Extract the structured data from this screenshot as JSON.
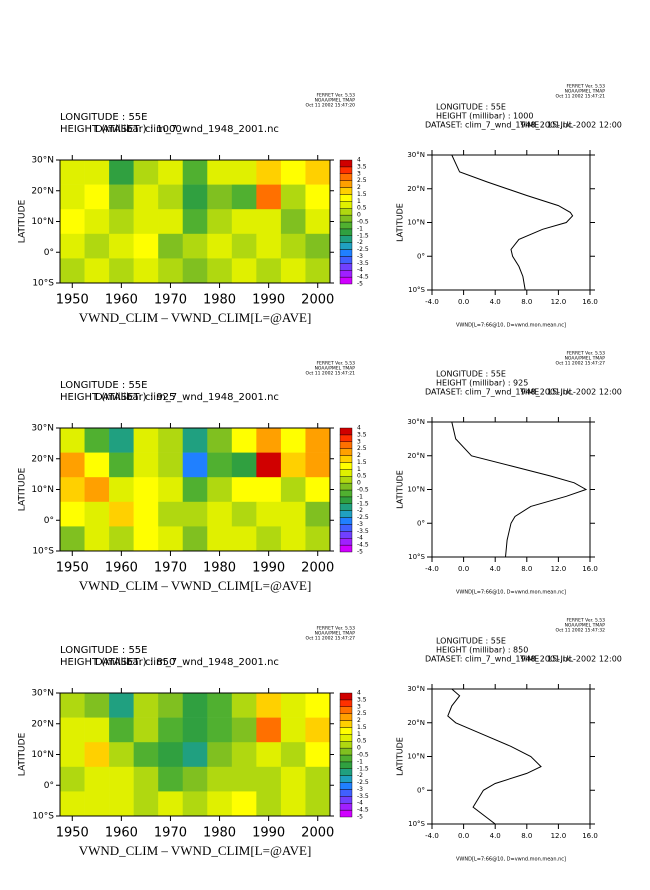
{
  "chart_data": [
    {
      "type": "heatmap",
      "stamp": [
        "FERRET Ver. 5.53",
        "NOAA/PMEL TMAP",
        "Oct 11 2002 15:47:20"
      ],
      "header": [
        "LONGITUDE : 55E",
        "HEIGHT (millibar) : 1000"
      ],
      "dataset": "DATASET: clim_7_wnd_1948_2001.nc",
      "ylabel": "LATITUDE",
      "xlabel": "VWND_CLIM – VWND_CLIM[L=@AVE]",
      "x": [
        1950,
        1955,
        1960,
        1965,
        1970,
        1975,
        1980,
        1985,
        1990,
        1995,
        2000
      ],
      "y": [
        26,
        18,
        10,
        2,
        -6
      ],
      "z": [
        [
          0.5,
          0.5,
          -1.5,
          0,
          0.5,
          -1,
          0.5,
          0.5,
          1.5,
          1,
          1.5
        ],
        [
          0.5,
          1,
          -0.5,
          0.5,
          0,
          -1.5,
          -0.5,
          -1,
          2.5,
          0,
          1
        ],
        [
          1,
          0.5,
          0,
          0.5,
          0.5,
          -1,
          0,
          0.5,
          0.5,
          -0.5,
          0.5
        ],
        [
          0.5,
          0,
          0.5,
          1,
          -0.5,
          0,
          0.5,
          0,
          0.5,
          0,
          -0.5
        ],
        [
          0,
          0.5,
          0,
          0.5,
          0,
          -0.5,
          0,
          0.5,
          0,
          0.5,
          0
        ]
      ],
      "xlim": [
        1947.5,
        2002.5
      ],
      "ylim": [
        -10,
        30
      ],
      "xticks": [
        1950,
        1960,
        1970,
        1980,
        1990,
        2000
      ],
      "yticks": [
        {
          "value": -10,
          "label": "10°S"
        },
        {
          "value": 0,
          "label": "0°"
        },
        {
          "value": 10,
          "label": "10°N"
        },
        {
          "value": 20,
          "label": "20°N"
        },
        {
          "value": 30,
          "label": "30°N"
        }
      ],
      "levels": [
        -5,
        -4.5,
        -4,
        -3.5,
        -3,
        -2.5,
        -2,
        -1.5,
        -1,
        -0.5,
        0,
        0.5,
        1,
        1.5,
        2,
        2.5,
        3,
        3.5,
        4
      ],
      "colors": [
        "#d000ff",
        "#a020ff",
        "#7040ff",
        "#4060ff",
        "#2080ff",
        "#20a0c0",
        "#20a080",
        "#30a040",
        "#50b030",
        "#80c020",
        "#b0d810",
        "#e0f000",
        "#ffff00",
        "#ffd000",
        "#ffa000",
        "#ff7000",
        "#ff3000",
        "#d00000"
      ]
    },
    {
      "type": "line",
      "stamp": [
        "FERRET Ver. 5.53",
        "NOAA/PMEL TMAP",
        "Oct 11 2002 15:47:21"
      ],
      "header": [
        "LONGITUDE : 55E",
        "HEIGHT (millibar) : 1000"
      ],
      "dataset": "DATASET: clim_7_wnd_1948_2001.nc",
      "time": "TIME : 15-JUL-2002 12:00",
      "ylabel": "LATITUDE",
      "xlabel": "VWND[L=7:66@10, D=vwnd.mon.mean.nc]",
      "lat": [
        30,
        25,
        22,
        18,
        15,
        13,
        12,
        10,
        8,
        5,
        2,
        0,
        -3,
        -6,
        -10
      ],
      "values": [
        -1.5,
        -0.5,
        3,
        8,
        12,
        13.5,
        13.8,
        13,
        10,
        7,
        6,
        6.2,
        7,
        7.5,
        7.8
      ],
      "xlim": [
        -4,
        16
      ],
      "ylim": [
        -10,
        30
      ],
      "xticks": [
        {
          "value": -4,
          "label": "-4.0"
        },
        {
          "value": 0,
          "label": "0.0"
        },
        {
          "value": 4,
          "label": "4.0"
        },
        {
          "value": 8,
          "label": "8.0"
        },
        {
          "value": 12,
          "label": "12.0"
        },
        {
          "value": 16,
          "label": "16.0"
        }
      ],
      "yticks": [
        {
          "value": -10,
          "label": "10°S"
        },
        {
          "value": 0,
          "label": "0°"
        },
        {
          "value": 10,
          "label": "10°N"
        },
        {
          "value": 20,
          "label": "20°N"
        },
        {
          "value": 30,
          "label": "30°N"
        }
      ]
    },
    {
      "type": "heatmap",
      "stamp": [
        "FERRET Ver. 5.53",
        "NOAA/PMEL TMAP",
        "Oct 11 2002 15:47:21"
      ],
      "header": [
        "LONGITUDE : 55E",
        "HEIGHT (millibar) : 925"
      ],
      "dataset": "DATASET: clim_7_wnd_1948_2001.nc",
      "ylabel": "LATITUDE",
      "xlabel": "VWND_CLIM – VWND_CLIM[L=@AVE]",
      "x": [
        1950,
        1955,
        1960,
        1965,
        1970,
        1975,
        1980,
        1985,
        1990,
        1995,
        2000
      ],
      "y": [
        26,
        18,
        10,
        2,
        -6
      ],
      "z": [
        [
          0.5,
          -1,
          -2,
          0.5,
          0,
          -2,
          -0.5,
          1,
          2,
          1,
          2
        ],
        [
          2,
          1,
          -1,
          0.5,
          0,
          -3,
          -1,
          -1.5,
          3.5,
          1.5,
          2
        ],
        [
          1.5,
          2,
          0.5,
          1,
          0.5,
          -1,
          0,
          1,
          1,
          0,
          1
        ],
        [
          1,
          0.5,
          1.5,
          1,
          0,
          0,
          0.5,
          0,
          0.5,
          0.5,
          -0.5
        ],
        [
          -0.5,
          0.5,
          0,
          1,
          0.5,
          -0.5,
          0.5,
          0.5,
          0,
          0.5,
          0
        ]
      ],
      "xlim": [
        1947.5,
        2002.5
      ],
      "ylim": [
        -10,
        30
      ],
      "xticks": [
        1950,
        1960,
        1970,
        1980,
        1990,
        2000
      ],
      "yticks": [
        {
          "value": -10,
          "label": "10°S"
        },
        {
          "value": 0,
          "label": "0°"
        },
        {
          "value": 10,
          "label": "10°N"
        },
        {
          "value": 20,
          "label": "20°N"
        },
        {
          "value": 30,
          "label": "30°N"
        }
      ],
      "levels": [
        -5,
        -4.5,
        -4,
        -3.5,
        -3,
        -2.5,
        -2,
        -1.5,
        -1,
        -0.5,
        0,
        0.5,
        1,
        1.5,
        2,
        2.5,
        3,
        3.5,
        4
      ],
      "colors": [
        "#d000ff",
        "#a020ff",
        "#7040ff",
        "#4060ff",
        "#2080ff",
        "#20a0c0",
        "#20a080",
        "#30a040",
        "#50b030",
        "#80c020",
        "#b0d810",
        "#e0f000",
        "#ffff00",
        "#ffd000",
        "#ffa000",
        "#ff7000",
        "#ff3000",
        "#d00000"
      ]
    },
    {
      "type": "line",
      "stamp": [
        "FERRET Ver. 5.53",
        "NOAA/PMEL TMAP",
        "Oct 11 2002 15:47:27"
      ],
      "header": [
        "LONGITUDE : 55E",
        "HEIGHT (millibar) : 925"
      ],
      "dataset": "DATASET: clim_7_wnd_1948_2001.nc",
      "time": "TIME : 15-JUL-2002 12:00",
      "ylabel": "LATITUDE",
      "xlabel": "VWND[L=7:66@10, D=vwnd.mon.mean.nc]",
      "lat": [
        30,
        25,
        20,
        17,
        14,
        12,
        10,
        8,
        5,
        2,
        0,
        -5,
        -10
      ],
      "values": [
        -1.5,
        -1,
        1,
        6,
        11,
        14,
        15.5,
        13,
        8.5,
        6.5,
        6,
        5.5,
        5.3
      ],
      "xlim": [
        -4,
        16
      ],
      "ylim": [
        -10,
        30
      ],
      "xticks": [
        {
          "value": -4,
          "label": "-4.0"
        },
        {
          "value": 0,
          "label": "0.0"
        },
        {
          "value": 4,
          "label": "4.0"
        },
        {
          "value": 8,
          "label": "8.0"
        },
        {
          "value": 12,
          "label": "12.0"
        },
        {
          "value": 16,
          "label": "16.0"
        }
      ],
      "yticks": [
        {
          "value": -10,
          "label": "10°S"
        },
        {
          "value": 0,
          "label": "0°"
        },
        {
          "value": 10,
          "label": "10°N"
        },
        {
          "value": 20,
          "label": "20°N"
        },
        {
          "value": 30,
          "label": "30°N"
        }
      ]
    },
    {
      "type": "heatmap",
      "stamp": [
        "FERRET Ver. 5.53",
        "NOAA/PMEL TMAP",
        "Oct 11 2002 15:47:27"
      ],
      "header": [
        "LONGITUDE : 55E",
        "HEIGHT (millibar) : 850"
      ],
      "dataset": "DATASET: clim_7_wnd_1948_2001.nc",
      "ylabel": "LATITUDE",
      "xlabel": "VWND_CLIM – VWND_CLIM[L=@AVE]",
      "x": [
        1950,
        1955,
        1960,
        1965,
        1970,
        1975,
        1980,
        1985,
        1990,
        1995,
        2000
      ],
      "y": [
        26,
        18,
        10,
        2,
        -6
      ],
      "z": [
        [
          0,
          -0.5,
          -2,
          0,
          -0.5,
          -1.5,
          -1,
          0,
          1.5,
          0.5,
          1
        ],
        [
          0.5,
          0.5,
          -1,
          0,
          -1,
          -1.5,
          -1,
          -0.5,
          2.5,
          0.5,
          1.5
        ],
        [
          0.5,
          1.5,
          0,
          -1,
          -1.5,
          -2,
          -0.5,
          0,
          0.5,
          0,
          1
        ],
        [
          0,
          0.5,
          0.5,
          0,
          -1,
          -0.5,
          0,
          0,
          0,
          0.5,
          0
        ],
        [
          0.5,
          0.5,
          0.5,
          0,
          0.5,
          0,
          0.5,
          1,
          0,
          0.5,
          0
        ]
      ],
      "xlim": [
        1947.5,
        2002.5
      ],
      "ylim": [
        -10,
        30
      ],
      "xticks": [
        1950,
        1960,
        1970,
        1980,
        1990,
        2000
      ],
      "yticks": [
        {
          "value": -10,
          "label": "10°S"
        },
        {
          "value": 0,
          "label": "0°"
        },
        {
          "value": 10,
          "label": "10°N"
        },
        {
          "value": 20,
          "label": "20°N"
        },
        {
          "value": 30,
          "label": "30°N"
        }
      ],
      "levels": [
        -5,
        -4.5,
        -4,
        -3.5,
        -3,
        -2.5,
        -2,
        -1.5,
        -1,
        -0.5,
        0,
        0.5,
        1,
        1.5,
        2,
        2.5,
        3,
        3.5,
        4
      ],
      "colors": [
        "#d000ff",
        "#a020ff",
        "#7040ff",
        "#4060ff",
        "#2080ff",
        "#20a0c0",
        "#20a080",
        "#30a040",
        "#50b030",
        "#80c020",
        "#b0d810",
        "#e0f000",
        "#ffff00",
        "#ffd000",
        "#ffa000",
        "#ff7000",
        "#ff3000",
        "#d00000"
      ]
    },
    {
      "type": "line",
      "stamp": [
        "FERRET Ver. 5.53",
        "NOAA/PMEL TMAP",
        "Oct 11 2002 15:47:32"
      ],
      "header": [
        "LONGITUDE : 55E",
        "HEIGHT (millibar) : 850"
      ],
      "dataset": "DATASET: clim_7_wnd_1948_2001.nc",
      "time": "TIME : 15-JUL-2002 12:00",
      "ylabel": "LATITUDE",
      "xlabel": "VWND[L=7:66@10, D=vwnd.mon.mean.nc]",
      "lat": [
        30,
        28,
        25,
        22,
        20,
        17,
        13,
        10,
        7,
        5,
        2,
        0,
        -5,
        -10
      ],
      "values": [
        -1.5,
        -0.5,
        -1.5,
        -2,
        -1,
        2,
        6,
        8.5,
        9.8,
        8,
        4,
        2.5,
        1.2,
        4
      ],
      "xlim": [
        -4,
        16
      ],
      "ylim": [
        -10,
        30
      ],
      "xticks": [
        {
          "value": -4,
          "label": "-4.0"
        },
        {
          "value": 0,
          "label": "0.0"
        },
        {
          "value": 4,
          "label": "4.0"
        },
        {
          "value": 8,
          "label": "8.0"
        },
        {
          "value": 12,
          "label": "12.0"
        },
        {
          "value": 16,
          "label": "16.0"
        }
      ],
      "yticks": [
        {
          "value": -10,
          "label": "10°S"
        },
        {
          "value": 0,
          "label": "0°"
        },
        {
          "value": 10,
          "label": "10°N"
        },
        {
          "value": 20,
          "label": "20°N"
        },
        {
          "value": 30,
          "label": "30°N"
        }
      ]
    }
  ]
}
